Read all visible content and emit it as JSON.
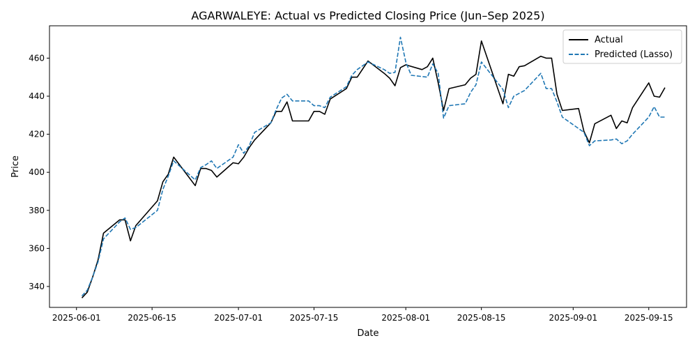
{
  "chart_data": {
    "type": "line",
    "title": "AGARWALEYE: Actual vs Predicted Closing Price (Jun–Sep 2025)",
    "xlabel": "Date",
    "ylabel": "Price",
    "x_ticks": [
      "2025-06-01",
      "2025-06-15",
      "2025-07-01",
      "2025-07-15",
      "2025-08-01",
      "2025-08-15",
      "2025-09-01",
      "2025-09-15"
    ],
    "y_ticks": [
      340,
      360,
      380,
      400,
      420,
      440,
      460
    ],
    "xlim": [
      "2025-05-27",
      "2025-09-22"
    ],
    "ylim": [
      329,
      477
    ],
    "legend_position": "top-right",
    "grid": false,
    "series": [
      {
        "name": "Actual",
        "color": "#000000",
        "style": "solid",
        "points": [
          [
            "2025-06-02",
            334
          ],
          [
            "2025-06-03",
            337
          ],
          [
            "2025-06-04",
            345
          ],
          [
            "2025-06-05",
            354
          ],
          [
            "2025-06-06",
            368
          ],
          [
            "2025-06-09",
            375
          ],
          [
            "2025-06-10",
            375
          ],
          [
            "2025-06-11",
            364
          ],
          [
            "2025-06-12",
            372
          ],
          [
            "2025-06-16",
            385
          ],
          [
            "2025-06-17",
            395
          ],
          [
            "2025-06-18",
            399
          ],
          [
            "2025-06-19",
            408
          ],
          [
            "2025-06-23",
            393
          ],
          [
            "2025-06-24",
            402
          ],
          [
            "2025-06-25",
            402
          ],
          [
            "2025-06-26",
            401
          ],
          [
            "2025-06-27",
            397.5
          ],
          [
            "2025-06-30",
            405
          ],
          [
            "2025-07-01",
            404.5
          ],
          [
            "2025-07-02",
            408
          ],
          [
            "2025-07-03",
            413
          ],
          [
            "2025-07-04",
            417
          ],
          [
            "2025-07-07",
            426
          ],
          [
            "2025-07-08",
            432
          ],
          [
            "2025-07-09",
            432
          ],
          [
            "2025-07-10",
            437
          ],
          [
            "2025-07-11",
            427
          ],
          [
            "2025-07-14",
            427
          ],
          [
            "2025-07-15",
            432
          ],
          [
            "2025-07-16",
            432
          ],
          [
            "2025-07-17",
            430.5
          ],
          [
            "2025-07-18",
            438.5
          ],
          [
            "2025-07-21",
            444
          ],
          [
            "2025-07-22",
            450
          ],
          [
            "2025-07-23",
            450
          ],
          [
            "2025-07-25",
            458.5
          ],
          [
            "2025-07-28",
            452
          ],
          [
            "2025-07-29",
            449.5
          ],
          [
            "2025-07-30",
            445.5
          ],
          [
            "2025-07-31",
            455
          ],
          [
            "2025-08-01",
            456.5
          ],
          [
            "2025-08-04",
            454
          ],
          [
            "2025-08-05",
            455.5
          ],
          [
            "2025-08-06",
            460
          ],
          [
            "2025-08-07",
            447
          ],
          [
            "2025-08-08",
            432.5
          ],
          [
            "2025-08-09",
            444
          ],
          [
            "2025-08-12",
            446
          ],
          [
            "2025-08-13",
            449.5
          ],
          [
            "2025-08-14",
            451.5
          ],
          [
            "2025-08-15",
            469
          ],
          [
            "2025-08-19",
            436
          ],
          [
            "2025-08-20",
            451.5
          ],
          [
            "2025-08-21",
            450.5
          ],
          [
            "2025-08-22",
            455.5
          ],
          [
            "2025-08-23",
            456
          ],
          [
            "2025-08-26",
            461
          ],
          [
            "2025-08-27",
            460
          ],
          [
            "2025-08-28",
            460
          ],
          [
            "2025-08-29",
            441
          ],
          [
            "2025-08-30",
            432.5
          ],
          [
            "2025-09-02",
            433.5
          ],
          [
            "2025-09-03",
            421.5
          ],
          [
            "2025-09-04",
            415.5
          ],
          [
            "2025-09-05",
            425.5
          ],
          [
            "2025-09-08",
            430
          ],
          [
            "2025-09-09",
            423
          ],
          [
            "2025-09-10",
            427
          ],
          [
            "2025-09-11",
            426
          ],
          [
            "2025-09-12",
            434
          ],
          [
            "2025-09-15",
            447
          ],
          [
            "2025-09-16",
            440
          ],
          [
            "2025-09-17",
            439.5
          ],
          [
            "2025-09-18",
            444.5
          ]
        ]
      },
      {
        "name": "Predicted (Lasso)",
        "color": "#1f77b4",
        "style": "dashed",
        "points": [
          [
            "2025-06-02",
            335
          ],
          [
            "2025-06-03",
            338
          ],
          [
            "2025-06-04",
            345
          ],
          [
            "2025-06-05",
            353
          ],
          [
            "2025-06-06",
            365
          ],
          [
            "2025-06-09",
            374
          ],
          [
            "2025-06-10",
            376
          ],
          [
            "2025-06-11",
            370
          ],
          [
            "2025-06-12",
            371
          ],
          [
            "2025-06-16",
            380
          ],
          [
            "2025-06-17",
            391
          ],
          [
            "2025-06-18",
            398
          ],
          [
            "2025-06-19",
            406
          ],
          [
            "2025-06-23",
            396
          ],
          [
            "2025-06-24",
            402.5
          ],
          [
            "2025-06-25",
            404
          ],
          [
            "2025-06-26",
            406
          ],
          [
            "2025-06-27",
            402
          ],
          [
            "2025-06-30",
            408
          ],
          [
            "2025-07-01",
            414.5
          ],
          [
            "2025-07-02",
            410
          ],
          [
            "2025-07-03",
            414
          ],
          [
            "2025-07-04",
            421
          ],
          [
            "2025-07-07",
            426
          ],
          [
            "2025-07-08",
            433
          ],
          [
            "2025-07-09",
            439
          ],
          [
            "2025-07-10",
            441
          ],
          [
            "2025-07-11",
            437.5
          ],
          [
            "2025-07-14",
            437.5
          ],
          [
            "2025-07-15",
            435
          ],
          [
            "2025-07-16",
            435
          ],
          [
            "2025-07-17",
            434
          ],
          [
            "2025-07-18",
            439.5
          ],
          [
            "2025-07-21",
            445
          ],
          [
            "2025-07-22",
            451
          ],
          [
            "2025-07-23",
            454
          ],
          [
            "2025-07-25",
            458
          ],
          [
            "2025-07-28",
            454
          ],
          [
            "2025-07-29",
            452
          ],
          [
            "2025-07-30",
            452.5
          ],
          [
            "2025-07-31",
            471
          ],
          [
            "2025-08-01",
            458
          ],
          [
            "2025-08-02",
            451
          ],
          [
            "2025-08-05",
            450
          ],
          [
            "2025-08-06",
            457
          ],
          [
            "2025-08-07",
            452
          ],
          [
            "2025-08-08",
            428.5
          ],
          [
            "2025-08-09",
            435
          ],
          [
            "2025-08-12",
            436
          ],
          [
            "2025-08-13",
            442
          ],
          [
            "2025-08-14",
            446
          ],
          [
            "2025-08-15",
            458
          ],
          [
            "2025-08-19",
            443.5
          ],
          [
            "2025-08-20",
            434
          ],
          [
            "2025-08-21",
            440
          ],
          [
            "2025-08-22",
            441.5
          ],
          [
            "2025-08-23",
            443
          ],
          [
            "2025-08-26",
            452
          ],
          [
            "2025-08-27",
            444
          ],
          [
            "2025-08-28",
            444
          ],
          [
            "2025-08-29",
            437
          ],
          [
            "2025-08-30",
            429
          ],
          [
            "2025-09-02",
            423
          ],
          [
            "2025-09-03",
            421
          ],
          [
            "2025-09-04",
            414
          ],
          [
            "2025-09-05",
            416.5
          ],
          [
            "2025-09-08",
            417
          ],
          [
            "2025-09-09",
            417.5
          ],
          [
            "2025-09-10",
            415
          ],
          [
            "2025-09-11",
            416.5
          ],
          [
            "2025-09-12",
            420
          ],
          [
            "2025-09-15",
            429
          ],
          [
            "2025-09-16",
            434.5
          ],
          [
            "2025-09-17",
            429
          ],
          [
            "2025-09-18",
            429
          ]
        ]
      }
    ]
  }
}
